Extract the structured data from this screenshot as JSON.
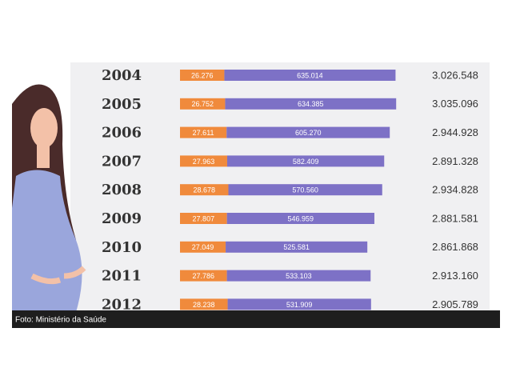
{
  "chart_data": {
    "type": "bar",
    "orientation": "horizontal",
    "stacked": true,
    "categories": [
      "2004",
      "2005",
      "2006",
      "2007",
      "2008",
      "2009",
      "2010",
      "2011",
      "2012"
    ],
    "series": [
      {
        "color": "#f08a3c",
        "values": [
          26276,
          26752,
          27611,
          27963,
          28678,
          27807,
          27049,
          27786,
          28238
        ],
        "value_labels": [
          "26.276",
          "26.752",
          "27.611",
          "27.963",
          "28.678",
          "27.807",
          "27.049",
          "27.786",
          "28.238"
        ]
      },
      {
        "color": "#7d71c6",
        "values": [
          635014,
          634385,
          605270,
          582409,
          570560,
          546959,
          525581,
          533103,
          531909
        ],
        "value_labels": [
          "635.014",
          "634.385",
          "605.270",
          "582.409",
          "570.560",
          "546.959",
          "525.581",
          "533.103",
          "531.909"
        ]
      }
    ],
    "totals": {
      "values": [
        3026548,
        3035096,
        2944928,
        2891328,
        2934828,
        2881581,
        2861868,
        2913160,
        2905789
      ],
      "value_labels": [
        "3.026.548",
        "3.035.096",
        "2.944.928",
        "2.891.328",
        "2.934.828",
        "2.881.581",
        "2.861.868",
        "2.913.160",
        "2.905.789"
      ]
    }
  },
  "caption": "Foto: Ministério da Saúde"
}
